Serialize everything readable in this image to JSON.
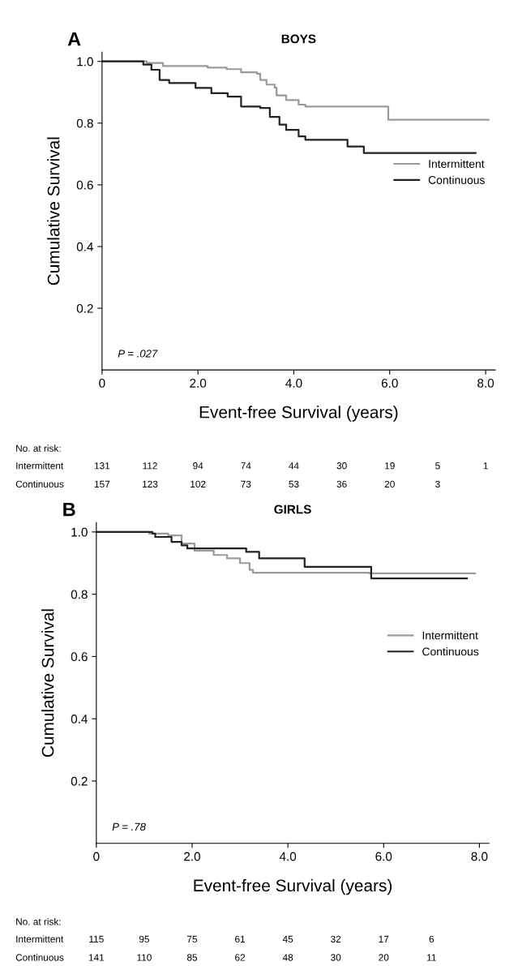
{
  "chart_data": [
    {
      "type": "step",
      "title": "BOYS",
      "xlabel": "Event-free Survival (years)",
      "ylabel": "Cumulative Survival",
      "xlim": [
        0,
        8.2
      ],
      "ylim": [
        0,
        1.03
      ],
      "xticks": [
        {
          "value": 0,
          "label": "0"
        },
        {
          "value": 2,
          "label": "2.0"
        },
        {
          "value": 4,
          "label": "4.0"
        },
        {
          "value": 6,
          "label": "6.0"
        },
        {
          "value": 8,
          "label": "8.0"
        }
      ],
      "yticks": [
        {
          "value": 0.2,
          "label": "0.2"
        },
        {
          "value": 0.4,
          "label": "0.4"
        },
        {
          "value": 0.6,
          "label": "0.6"
        },
        {
          "value": 0.8,
          "label": "0.8"
        },
        {
          "value": 1.0,
          "label": "1.0"
        }
      ],
      "legend": "right",
      "grid": false,
      "series": [
        {
          "name": "Intermittent",
          "color": "#9a9a9a",
          "x": [
            0,
            0.93,
            1.27,
            2.2,
            2.6,
            2.9,
            3.23,
            3.3,
            3.43,
            3.6,
            3.64,
            3.84,
            4.1,
            4.24,
            5.97,
            8.06
          ],
          "values": [
            1.0,
            0.995,
            0.985,
            0.98,
            0.975,
            0.965,
            0.96,
            0.94,
            0.925,
            0.915,
            0.89,
            0.875,
            0.86,
            0.854,
            0.811,
            0.811
          ]
        },
        {
          "name": "Continuous",
          "color": "#222222",
          "x": [
            0,
            0.86,
            1.03,
            1.2,
            1.4,
            1.95,
            2.28,
            2.62,
            2.9,
            3.3,
            3.5,
            3.7,
            3.84,
            4.1,
            4.24,
            5.12,
            5.46,
            7.79
          ],
          "values": [
            1.0,
            0.99,
            0.973,
            0.94,
            0.93,
            0.914,
            0.897,
            0.886,
            0.854,
            0.849,
            0.82,
            0.795,
            0.778,
            0.757,
            0.746,
            0.724,
            0.703,
            0.703
          ]
        }
      ],
      "annotations": [
        "A",
        "P = .027",
        "No. at risk:",
        "Intermittent",
        "131",
        "112",
        "94",
        "74",
        "44",
        "30",
        "19",
        "5",
        "1",
        "Continuous",
        "157",
        "123",
        "102",
        "73",
        "53",
        "36",
        "20",
        "3"
      ]
    },
    {
      "type": "step",
      "title": "GIRLS",
      "xlabel": "Event-free Survival (years)",
      "ylabel": "Cumulative Survival",
      "xlim": [
        0,
        8.2
      ],
      "ylim": [
        0,
        1.03
      ],
      "xticks": [
        {
          "value": 0,
          "label": "0"
        },
        {
          "value": 2,
          "label": "2.0"
        },
        {
          "value": 4,
          "label": "4.0"
        },
        {
          "value": 6,
          "label": "6.0"
        },
        {
          "value": 8,
          "label": "8.0"
        }
      ],
      "yticks": [
        {
          "value": 0.2,
          "label": "0.2"
        },
        {
          "value": 0.4,
          "label": "0.4"
        },
        {
          "value": 0.6,
          "label": "0.6"
        },
        {
          "value": 0.8,
          "label": "0.8"
        },
        {
          "value": 1.0,
          "label": "1.0"
        }
      ],
      "legend": "right",
      "grid": false,
      "series": [
        {
          "name": "Intermittent",
          "color": "#9a9a9a",
          "x": [
            0,
            1.1,
            1.5,
            1.78,
            2.05,
            2.45,
            2.73,
            3.0,
            3.2,
            3.27,
            5.7,
            7.91
          ],
          "values": [
            1.0,
            0.995,
            0.989,
            0.963,
            0.94,
            0.926,
            0.915,
            0.9,
            0.878,
            0.869,
            0.867,
            0.867
          ]
        },
        {
          "name": "Continuous",
          "color": "#222222",
          "x": [
            0,
            1.17,
            1.23,
            1.57,
            1.78,
            1.9,
            3.13,
            3.4,
            4.35,
            5.74,
            7.74
          ],
          "values": [
            1.0,
            0.995,
            0.984,
            0.968,
            0.957,
            0.947,
            0.936,
            0.915,
            0.888,
            0.851,
            0.851
          ]
        }
      ],
      "annotations": [
        "B",
        "P = .78",
        "No. at risk:",
        "Intermittent",
        "115",
        "95",
        "75",
        "61",
        "45",
        "32",
        "17",
        "6",
        "Continuous",
        "141",
        "110",
        "85",
        "62",
        "48",
        "30",
        "20",
        "11"
      ]
    }
  ]
}
